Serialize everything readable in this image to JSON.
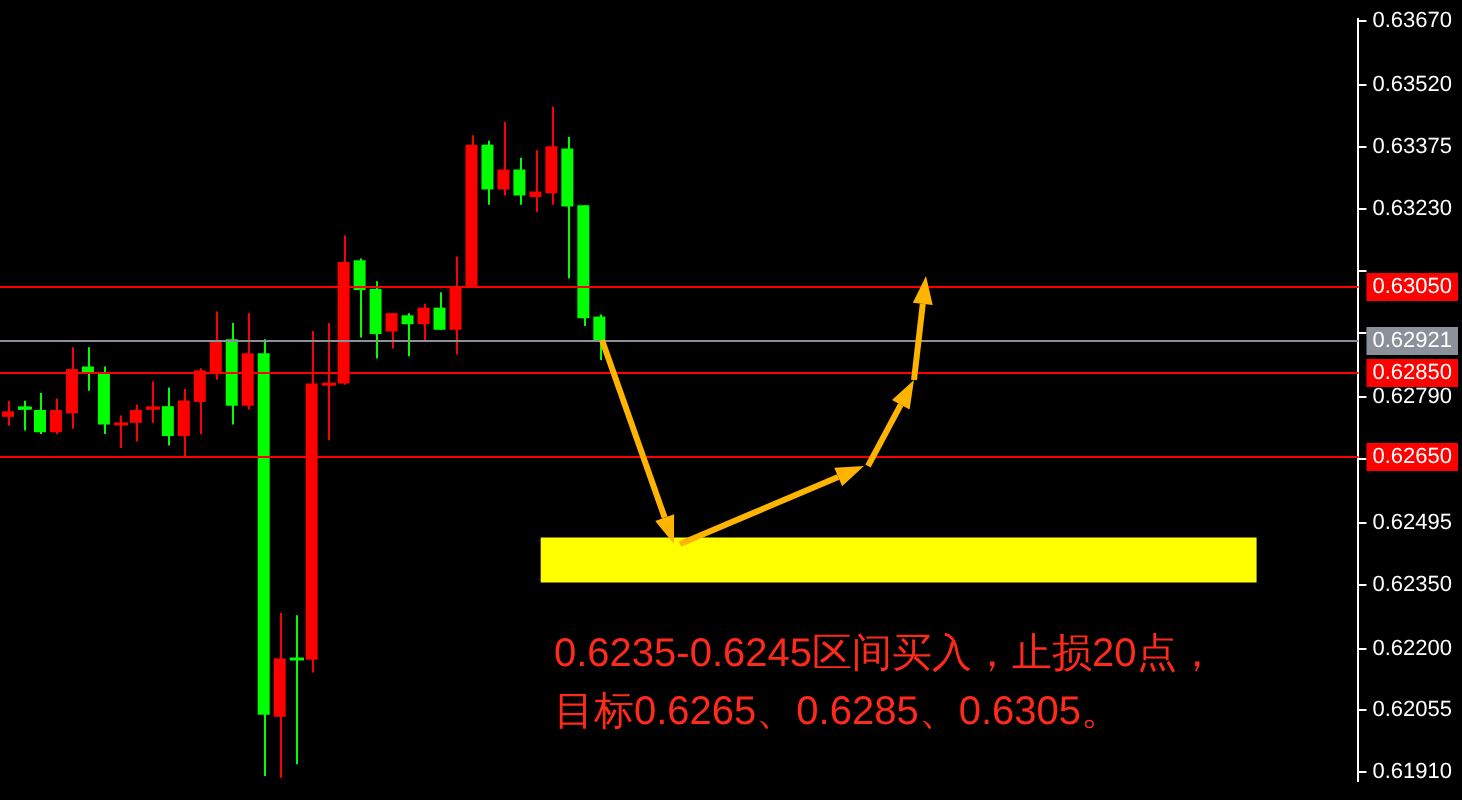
{
  "chart_data": {
    "type": "candlestick",
    "categories": [
      null,
      null,
      null,
      null,
      null,
      null,
      null,
      null,
      null,
      null,
      null,
      null,
      null,
      null,
      null,
      null,
      null,
      null,
      null,
      null,
      null,
      null,
      null,
      null,
      null,
      null,
      null,
      null,
      null,
      null,
      null,
      null,
      null,
      null,
      null,
      null,
      null,
      null,
      null,
      null,
      null,
      null,
      null,
      null,
      null,
      null,
      null,
      null,
      null,
      null,
      null,
      null,
      null,
      null,
      null,
      null,
      null,
      null,
      null,
      null,
      null,
      null,
      null,
      null,
      null,
      null,
      null,
      null,
      null,
      null,
      null,
      null,
      null,
      null,
      null,
      null,
      null,
      null,
      null,
      null,
      null,
      null,
      null,
      null,
      null
    ],
    "ohlc": [
      [
        0.62743,
        0.62781,
        0.62722,
        0.62756
      ],
      [
        0.62767,
        0.62781,
        0.62711,
        0.6276
      ],
      [
        0.62759,
        0.62799,
        0.62703,
        0.62707
      ],
      [
        0.62707,
        0.62786,
        0.62703,
        0.62759
      ],
      [
        0.62751,
        0.62906,
        0.62715,
        0.62855
      ],
      [
        0.62861,
        0.62906,
        0.62804,
        0.62845
      ],
      [
        0.62848,
        0.62861,
        0.62703,
        0.62725
      ],
      [
        0.62725,
        0.62746,
        0.6267,
        0.62728
      ],
      [
        0.62729,
        0.62772,
        0.62685,
        0.62759
      ],
      [
        0.6276,
        0.62826,
        0.62729,
        0.62767
      ],
      [
        0.62768,
        0.62812,
        0.62676,
        0.62698
      ],
      [
        0.62698,
        0.62808,
        0.62649,
        0.62781
      ],
      [
        0.62778,
        0.62857,
        0.62703,
        0.62852
      ],
      [
        0.62845,
        0.6299,
        0.6283,
        0.62923
      ],
      [
        0.62925,
        0.62963,
        0.62725,
        0.62769
      ],
      [
        0.62769,
        0.62986,
        0.6276,
        0.62892
      ],
      [
        0.62892,
        0.62925,
        0.61901,
        0.62045
      ],
      [
        0.6204,
        0.62283,
        0.61897,
        0.62177
      ],
      [
        0.62177,
        0.62278,
        0.61929,
        0.62174
      ],
      [
        0.62174,
        0.62944,
        0.62144,
        0.62821
      ],
      [
        0.62818,
        0.62963,
        0.62688,
        0.62821
      ],
      [
        0.62821,
        0.63168,
        0.62818,
        0.63106
      ],
      [
        0.6311,
        0.63114,
        0.62929,
        0.6304
      ],
      [
        0.63043,
        0.63061,
        0.6288,
        0.62937
      ],
      [
        0.62943,
        0.62986,
        0.62903,
        0.62986
      ],
      [
        0.62981,
        0.62986,
        0.62885,
        0.6296
      ],
      [
        0.6296,
        0.63008,
        0.6292,
        0.62999
      ],
      [
        0.62999,
        0.63035,
        0.62947,
        0.62947
      ],
      [
        0.62947,
        0.63119,
        0.62889,
        0.63048
      ],
      [
        0.63049,
        0.63403,
        0.63045,
        0.63381
      ],
      [
        0.63381,
        0.6339,
        0.6324,
        0.63276
      ],
      [
        0.63276,
        0.63434,
        0.63262,
        0.63323
      ],
      [
        0.63323,
        0.6335,
        0.6324,
        0.63262
      ],
      [
        0.63258,
        0.63368,
        0.63223,
        0.63271
      ],
      [
        0.63267,
        0.6347,
        0.6324,
        0.63377
      ],
      [
        0.63372,
        0.63399,
        0.63067,
        0.63236
      ],
      [
        0.63239,
        0.63239,
        0.62956,
        0.62974
      ],
      [
        0.62978,
        0.62983,
        0.62876,
        0.62921
      ],
      null,
      null,
      null,
      null,
      null,
      null,
      null,
      null,
      null,
      null,
      null,
      null,
      null,
      null,
      null,
      null,
      null,
      null,
      null,
      null,
      null,
      null,
      null,
      null,
      null,
      null,
      null,
      null,
      null,
      null,
      null,
      null,
      null,
      null,
      null,
      null,
      null,
      null,
      null,
      null,
      null,
      null,
      null,
      null,
      null,
      null,
      null
    ],
    "colors": [
      "#ff0000",
      "#00ff00",
      "#00ff00",
      "#ff0000",
      "#ff0000",
      "#00ff00",
      "#00ff00",
      "#ff0000",
      "#ff0000",
      "#ff0000",
      "#00ff00",
      "#ff0000",
      "#ff0000",
      "#ff0000",
      "#00ff00",
      "#ff0000",
      "#00ff00",
      "#ff0000",
      "#00ff00",
      "#ff0000",
      "#ff0000",
      "#ff0000",
      "#00ff00",
      "#00ff00",
      "#ff0000",
      "#00ff00",
      "#ff0000",
      "#00ff00",
      "#ff0000",
      "#ff0000",
      "#00ff00",
      "#ff0000",
      "#00ff00",
      "#ff0000",
      "#ff0000",
      "#00ff00",
      "#00ff00",
      "#00ff00",
      null,
      null,
      null,
      null,
      null,
      null,
      null,
      null,
      null,
      null,
      null,
      null,
      null,
      null,
      null,
      null,
      null,
      null,
      null,
      null,
      null,
      null,
      null,
      null,
      null,
      null,
      null,
      null,
      null,
      null,
      null,
      null,
      null,
      null,
      null,
      null,
      null,
      null,
      null,
      null,
      null,
      null,
      null,
      null,
      null,
      null,
      null
    ],
    "ylim": [
      0.6189,
      0.63675
    ],
    "yticks": [
      {
        "value": 0.6367,
        "label": "0.63670"
      },
      {
        "value": 0.6352,
        "label": "0.63520"
      },
      0.63375,
      {
        "value": 0.6323,
        "label": "0.63230"
      },
      {
        "value": 0.63085,
        "label": null
      },
      {
        "value": 0.6294,
        "label": null
      },
      {
        "value": 0.6279,
        "label": "0.62790"
      },
      {
        "value": 0.62645,
        "label": null
      },
      0.62495,
      {
        "value": 0.6235,
        "label": "0.62350"
      },
      {
        "value": 0.622,
        "label": "0.62200"
      },
      0.62055,
      {
        "value": 0.6191,
        "label": "0.61910"
      }
    ],
    "tick_labels": "y",
    "ref_lines": [
      {
        "axis": "y",
        "value": 0.6305,
        "label": "0.63050",
        "color": "#ff0000"
      },
      {
        "axis": "y",
        "value": 0.62921,
        "label": "0.62921",
        "color": "#8a919a"
      },
      {
        "axis": "y",
        "value": 0.6285,
        "label": "0.62850",
        "color": "#ff0000"
      },
      {
        "axis": "y",
        "value": 0.6265,
        "label": "0.62650",
        "color": "#ff0000"
      }
    ],
    "bands": [
      {
        "axis": "y",
        "from": 0.62355,
        "to": 0.6246,
        "color": "#ffff00"
      }
    ],
    "annotations": [
      "0.6235-0.6245区间买入，止损20点，",
      "目标0.6265、0.6285、0.6305。"
    ]
  }
}
